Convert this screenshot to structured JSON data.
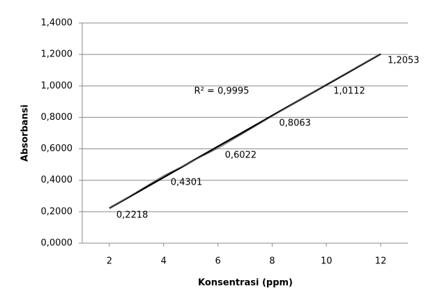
{
  "chart_data": {
    "type": "line",
    "x": [
      2,
      4,
      6,
      8,
      10,
      12
    ],
    "values": [
      0.2218,
      0.4301,
      0.6022,
      0.8063,
      1.0112,
      1.2053
    ],
    "value_labels": [
      "0,2218",
      "0,4301",
      "0,6022",
      "0,8063",
      "1,0112",
      "1,2053"
    ],
    "color": "#000000",
    "trendline": true,
    "annotation": "R² = 0,9995",
    "x_label": "Konsentrasi (ppm)",
    "y_label": "Absorbansi",
    "xlim": [
      1,
      13
    ],
    "xticks": [
      2,
      4,
      6,
      8,
      10,
      12
    ],
    "ylim": [
      0,
      1.4
    ],
    "yticks": [
      {
        "value": 0,
        "label": "0,0000"
      },
      {
        "value": 0.2,
        "label": "0,2000"
      },
      {
        "value": 0.4,
        "label": "0,4000"
      },
      {
        "value": 0.6,
        "label": "0,6000"
      },
      {
        "value": 0.8,
        "label": "0,8000"
      },
      {
        "value": 1.0,
        "label": "1,0000"
      },
      {
        "value": 1.2,
        "label": "1,2000"
      },
      {
        "value": 1.4,
        "label": "1,4000"
      }
    ],
    "grid": true
  }
}
